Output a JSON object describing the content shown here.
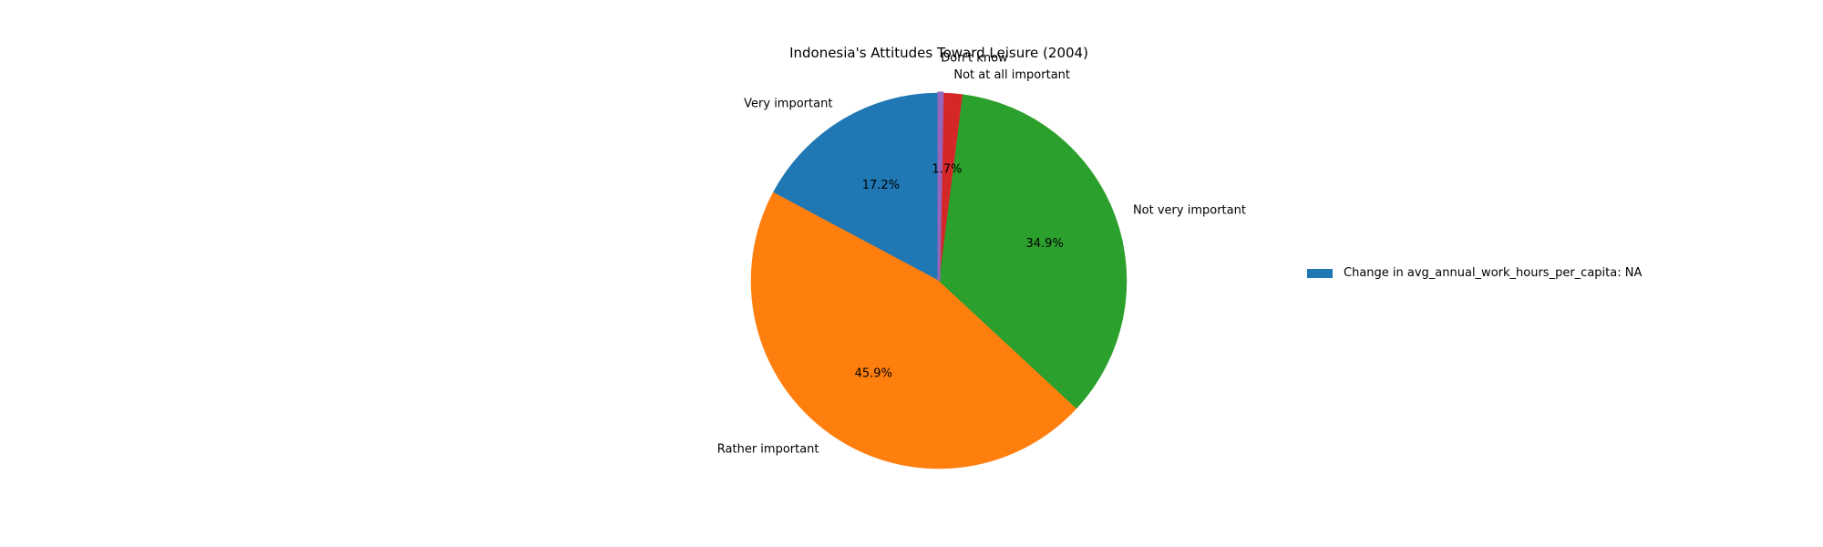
{
  "chart_data": {
    "type": "pie",
    "title": "Indonesia's Attitudes Toward Leisure (2004)",
    "categories": [
      "Very important",
      "Rather important",
      "Not very important",
      "Not at all important",
      "Don't know"
    ],
    "values": [
      17.2,
      45.9,
      34.9,
      1.7,
      0.3
    ],
    "percent_labels": [
      "17.2%",
      "45.9%",
      "34.9%",
      "1.7%",
      ""
    ],
    "colors": [
      "#1f77b4",
      "#ff7f0e",
      "#2ca02c",
      "#d62728",
      "#9467bd"
    ],
    "start_angle_deg": 90,
    "direction": "counterclockwise",
    "legend": {
      "position": "right",
      "entries": [
        {
          "label": "Change in avg_annual_work_hours_per_capita: NA",
          "color": "#1f77b4"
        }
      ]
    }
  }
}
